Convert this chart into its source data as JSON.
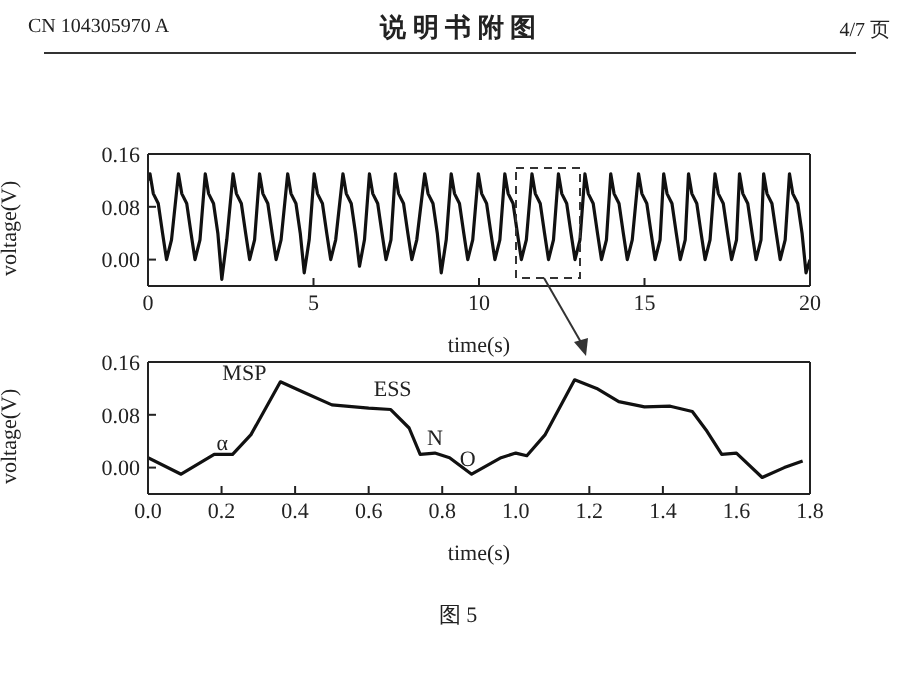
{
  "chart_data": [
    {
      "type": "line",
      "annotations": [
        "CN 104305970 A",
        "说 明 书 附 图",
        "4/7 页"
      ],
      "xlabel": "time(s)",
      "ylabel": "voltage(V)",
      "xlim": [
        0,
        20
      ],
      "xticks": [
        0,
        5,
        10,
        15,
        20
      ],
      "ylim": [
        -0.04,
        0.16
      ],
      "yticks": [
        {
          "value": 0,
          "label": "0.00"
        },
        {
          "value": 0.08,
          "label": "0.08"
        },
        {
          "value": 0.16,
          "label": "0.16"
        }
      ],
      "marker": "none",
      "line_style": "solid",
      "series": [
        {
          "color": "#111111",
          "x": [
            0,
            0.06,
            0.16,
            0.31,
            0.44,
            0.56,
            0.71,
            0.92,
            1.02,
            1.17,
            1.3,
            1.42,
            1.57,
            1.73,
            1.83,
            1.98,
            2.11,
            2.23,
            2.38,
            2.57,
            2.67,
            2.82,
            2.95,
            3.07,
            3.22,
            3.37,
            3.47,
            3.62,
            3.75,
            3.87,
            4.02,
            4.22,
            4.32,
            4.47,
            4.6,
            4.72,
            4.87,
            5.02,
            5.12,
            5.27,
            5.4,
            5.52,
            5.67,
            5.89,
            5.99,
            6.14,
            6.27,
            6.39,
            6.54,
            6.69,
            6.79,
            6.94,
            7.07,
            7.19,
            7.34,
            7.47,
            7.57,
            7.72,
            7.85,
            7.97,
            8.12,
            8.36,
            8.46,
            8.61,
            8.74,
            8.86,
            9.01,
            9.16,
            9.26,
            9.41,
            9.54,
            9.66,
            9.81,
            9.98,
            10.08,
            10.23,
            10.36,
            10.48,
            10.63,
            10.78,
            10.88,
            11.03,
            11.16,
            11.28,
            11.43,
            11.6,
            11.7,
            11.85,
            11.98,
            12.1,
            12.25,
            12.4,
            12.5,
            12.65,
            12.78,
            12.9,
            13.05,
            13.2,
            13.3,
            13.45,
            13.58,
            13.7,
            13.85,
            13.98,
            14.08,
            14.23,
            14.36,
            14.48,
            14.63,
            14.82,
            14.92,
            15.07,
            15.2,
            15.32,
            15.47,
            15.58,
            15.68,
            15.83,
            15.96,
            16.08,
            16.23,
            16.33,
            16.43,
            16.58,
            16.71,
            16.83,
            16.98,
            17.13,
            17.23,
            17.38,
            17.51,
            17.63,
            17.78,
            17.87,
            17.97,
            18.12,
            18.25,
            18.37,
            18.52,
            18.6,
            18.7,
            18.85,
            18.98,
            19.1,
            19.25,
            19.38,
            19.48,
            19.63,
            19.76,
            19.88,
            20
          ],
          "values": [
            0.12,
            0.13,
            0.1,
            0.085,
            0.04,
            0,
            0.03,
            0.13,
            0.1,
            0.085,
            0.04,
            0,
            0.03,
            0.13,
            0.1,
            0.085,
            0.04,
            -0.03,
            0.03,
            0.13,
            0.1,
            0.085,
            0.04,
            0,
            0.03,
            0.13,
            0.1,
            0.085,
            0.04,
            0,
            0.03,
            0.13,
            0.1,
            0.085,
            0.04,
            -0.02,
            0.03,
            0.13,
            0.1,
            0.085,
            0.04,
            0,
            0.03,
            0.13,
            0.1,
            0.085,
            0.04,
            -0.01,
            0.03,
            0.13,
            0.1,
            0.085,
            0.04,
            0,
            0.03,
            0.13,
            0.1,
            0.085,
            0.04,
            0,
            0.03,
            0.13,
            0.1,
            0.085,
            0.04,
            -0.02,
            0.03,
            0.13,
            0.1,
            0.085,
            0.04,
            0,
            0.03,
            0.13,
            0.1,
            0.085,
            0.04,
            0,
            0.03,
            0.13,
            0.1,
            0.085,
            0.04,
            0,
            0.03,
            0.13,
            0.1,
            0.085,
            0.04,
            0,
            0.03,
            0.13,
            0.1,
            0.085,
            0.04,
            0,
            0.03,
            0.13,
            0.1,
            0.085,
            0.04,
            0,
            0.03,
            0.13,
            0.1,
            0.085,
            0.04,
            0,
            0.03,
            0.13,
            0.1,
            0.085,
            0.04,
            0,
            0.03,
            0.13,
            0.1,
            0.085,
            0.04,
            0,
            0.03,
            0.13,
            0.1,
            0.085,
            0.04,
            0,
            0.03,
            0.13,
            0.1,
            0.085,
            0.04,
            0,
            0.03,
            0.13,
            0.1,
            0.085,
            0.04,
            0,
            0.03,
            0.13,
            0.1,
            0.085,
            0.04,
            0,
            0.03,
            0.13,
            0.1,
            0.085,
            0.04,
            -0.02,
            0
          ]
        }
      ]
    },
    {
      "type": "line",
      "annotations": [
        {
          "text": "α",
          "x": 0.18,
          "y": 0.02
        },
        {
          "text": "MSP",
          "x": 0.36,
          "y": 0.13
        },
        {
          "text": "ESS",
          "x": 0.6,
          "y": 0.09
        },
        {
          "text": "N",
          "x": 0.78,
          "y": 0.022
        },
        {
          "text": "O",
          "x": 0.88,
          "y": -0.01
        },
        "图 5"
      ],
      "xlabel": "time(s)",
      "ylabel": "voltage(V)",
      "xlim": [
        0,
        1.8
      ],
      "xticks": [
        {
          "value": 0,
          "label": "0.0"
        },
        {
          "value": 0.2,
          "label": "0.2"
        },
        {
          "value": 0.4,
          "label": "0.4"
        },
        {
          "value": 0.6,
          "label": "0.6"
        },
        {
          "value": 0.8,
          "label": "0.8"
        },
        {
          "value": 1,
          "label": "1.0"
        },
        {
          "value": 1.2,
          "label": "1.2"
        },
        {
          "value": 1.4,
          "label": "1.4"
        },
        {
          "value": 1.6,
          "label": "1.6"
        },
        {
          "value": 1.8,
          "label": "1.8"
        }
      ],
      "ylim": [
        -0.04,
        0.16
      ],
      "yticks": [
        {
          "value": 0,
          "label": "0.00"
        },
        {
          "value": 0.08,
          "label": "0.08"
        },
        {
          "value": 0.16,
          "label": "0.16"
        }
      ],
      "marker": "none",
      "line_style": "solid",
      "series": [
        {
          "color": "#111111",
          "x": [
            0,
            0.09,
            0.18,
            0.23,
            0.28,
            0.36,
            0.42,
            0.5,
            0.6,
            0.66,
            0.71,
            0.74,
            0.78,
            0.82,
            0.88,
            0.96,
            1,
            1.03,
            1.08,
            1.16,
            1.22,
            1.28,
            1.35,
            1.42,
            1.48,
            1.52,
            1.56,
            1.6,
            1.67,
            1.73,
            1.78
          ],
          "values": [
            0.015,
            -0.01,
            0.02,
            0.02,
            0.05,
            0.13,
            0.115,
            0.095,
            0.09,
            0.088,
            0.06,
            0.02,
            0.022,
            0.015,
            -0.01,
            0.015,
            0.022,
            0.018,
            0.05,
            0.133,
            0.12,
            0.1,
            0.092,
            0.093,
            0.085,
            0.055,
            0.02,
            0.022,
            -0.015,
            0,
            0.01
          ]
        }
      ]
    }
  ]
}
